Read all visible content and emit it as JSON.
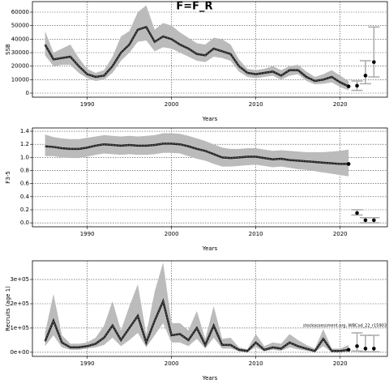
{
  "chart_data": [
    {
      "type": "line",
      "title": "F=F_R",
      "xlabel": "Years",
      "ylabel": "SSB",
      "color": "#222222",
      "band_color": "#bbbbbb",
      "grid": true,
      "xlim": [
        1983.5,
        2025.6
      ],
      "xticks": [
        1990,
        2000,
        2010,
        2020
      ],
      "ylim": [
        -3000,
        67800
      ],
      "yticks": [
        0,
        10000,
        20000,
        30000,
        40000,
        50000,
        60000
      ],
      "x": [
        1985,
        1986,
        1987,
        1988,
        1989,
        1990,
        1991,
        1992,
        1993,
        1994,
        1995,
        1996,
        1997,
        1998,
        1999,
        2000,
        2001,
        2002,
        2003,
        2004,
        2005,
        2006,
        2007,
        2008,
        2009,
        2010,
        2011,
        2012,
        2013,
        2014,
        2015,
        2016,
        2017,
        2018,
        2019,
        2020,
        2021
      ],
      "values": [
        36000,
        25000,
        26000,
        27000,
        20000,
        14000,
        12000,
        13000,
        20000,
        30000,
        36000,
        47000,
        49000,
        38000,
        42000,
        40000,
        36000,
        33000,
        29000,
        28000,
        33000,
        31000,
        29000,
        20000,
        15000,
        14000,
        15000,
        16000,
        13000,
        17000,
        17000,
        12000,
        9000,
        10000,
        12000,
        8000,
        5000
      ],
      "upper": [
        46000,
        30000,
        33000,
        36000,
        26000,
        18000,
        15000,
        17000,
        27000,
        42000,
        46000,
        60000,
        65000,
        47000,
        52000,
        50000,
        45000,
        41000,
        37000,
        36000,
        41000,
        40000,
        36000,
        25000,
        18000,
        17000,
        18000,
        20000,
        17000,
        20000,
        21000,
        16000,
        12000,
        14000,
        17000,
        13000,
        9000
      ],
      "lower": [
        28000,
        20000,
        21000,
        21000,
        15000,
        11000,
        9000,
        10000,
        15000,
        24000,
        30000,
        38000,
        39000,
        31000,
        34000,
        33000,
        30000,
        27000,
        24000,
        23000,
        27000,
        26000,
        24000,
        16000,
        12000,
        11000,
        12000,
        13000,
        10000,
        13000,
        14000,
        9000,
        6500,
        7000,
        8000,
        4500,
        2000
      ],
      "projection": {
        "x": [
          2022,
          2023,
          2024
        ],
        "values": [
          5500,
          13000,
          23000
        ],
        "lower": [
          2000,
          7000,
          12000
        ],
        "upper": [
          9000,
          24000,
          49000
        ]
      }
    },
    {
      "type": "line",
      "xlabel": "Years",
      "ylabel": "F3-5",
      "color": "#222222",
      "band_color": "#bbbbbb",
      "grid": true,
      "xlim": [
        1983.5,
        2025.6
      ],
      "xticks": [
        1990,
        2000,
        2010,
        2020
      ],
      "ylim": [
        -0.06,
        1.45
      ],
      "yticks": [
        {
          "value": 0,
          "label": "0.0"
        },
        0.2,
        0.4,
        0.6,
        0.8,
        {
          "value": 1,
          "label": "1.0"
        },
        1.2,
        1.4
      ],
      "x": [
        1985,
        1986,
        1987,
        1988,
        1989,
        1990,
        1991,
        1992,
        1993,
        1994,
        1995,
        1996,
        1997,
        1998,
        1999,
        2000,
        2001,
        2002,
        2003,
        2004,
        2005,
        2006,
        2007,
        2008,
        2009,
        2010,
        2011,
        2012,
        2013,
        2014,
        2015,
        2016,
        2017,
        2018,
        2019,
        2020,
        2021
      ],
      "values": [
        1.17,
        1.16,
        1.14,
        1.13,
        1.13,
        1.15,
        1.18,
        1.2,
        1.19,
        1.18,
        1.19,
        1.18,
        1.18,
        1.19,
        1.21,
        1.21,
        1.2,
        1.17,
        1.13,
        1.1,
        1.05,
        1.0,
        0.99,
        1.0,
        1.01,
        1.01,
        0.99,
        0.97,
        0.98,
        0.96,
        0.95,
        0.94,
        0.93,
        0.92,
        0.91,
        0.9,
        0.9
      ],
      "upper": [
        1.35,
        1.31,
        1.29,
        1.28,
        1.28,
        1.3,
        1.32,
        1.34,
        1.33,
        1.32,
        1.33,
        1.32,
        1.33,
        1.34,
        1.37,
        1.37,
        1.36,
        1.33,
        1.29,
        1.25,
        1.2,
        1.15,
        1.13,
        1.13,
        1.14,
        1.14,
        1.12,
        1.1,
        1.11,
        1.1,
        1.09,
        1.08,
        1.08,
        1.08,
        1.09,
        1.1,
        1.12
      ],
      "lower": [
        1.02,
        1.02,
        1.0,
        0.99,
        0.99,
        1.01,
        1.04,
        1.06,
        1.05,
        1.04,
        1.05,
        1.04,
        1.04,
        1.05,
        1.07,
        1.07,
        1.06,
        1.02,
        0.98,
        0.95,
        0.9,
        0.86,
        0.86,
        0.87,
        0.88,
        0.89,
        0.87,
        0.85,
        0.86,
        0.84,
        0.82,
        0.81,
        0.79,
        0.77,
        0.75,
        0.73,
        0.71
      ],
      "projection": {
        "x": [
          2022,
          2023,
          2024
        ],
        "values": [
          0.15,
          0.04,
          0.04
        ],
        "lower": [
          0.12,
          0.0,
          0.0
        ],
        "upper": [
          0.2,
          0.08,
          0.08
        ]
      }
    },
    {
      "type": "line",
      "xlabel": "Years",
      "ylabel": "Recruits (age 1)",
      "color": "#222222",
      "band_color": "#bbbbbb",
      "grid": true,
      "annotation": "stockassessment.org, WBCod_22_r15903",
      "xlim": [
        1983.5,
        2025.6
      ],
      "xticks": [
        1990,
        2000,
        2010,
        2020
      ],
      "ylim": [
        -17000,
        377000
      ],
      "yticks": [
        {
          "value": 0,
          "label": "0e+00"
        },
        {
          "value": 100000,
          "label": "1e+05"
        },
        {
          "value": 200000,
          "label": "2e+05"
        },
        {
          "value": 300000,
          "label": "3e+05"
        }
      ],
      "x": [
        1985,
        1986,
        1987,
        1988,
        1989,
        1990,
        1991,
        1992,
        1993,
        1994,
        1995,
        1996,
        1997,
        1998,
        1999,
        2000,
        2001,
        2002,
        2003,
        2004,
        2005,
        2006,
        2007,
        2008,
        2009,
        2010,
        2011,
        2012,
        2013,
        2014,
        2015,
        2016,
        2017,
        2018,
        2019,
        2020,
        2021
      ],
      "values": [
        45000,
        130000,
        40000,
        20000,
        20000,
        25000,
        35000,
        60000,
        110000,
        50000,
        100000,
        150000,
        40000,
        130000,
        210000,
        70000,
        75000,
        50000,
        100000,
        30000,
        110000,
        30000,
        30000,
        10000,
        5000,
        40000,
        10000,
        20000,
        15000,
        40000,
        25000,
        15000,
        5000,
        55000,
        5000,
        5000,
        10000
      ],
      "upper": [
        80000,
        240000,
        70000,
        35000,
        35000,
        40000,
        60000,
        110000,
        210000,
        90000,
        190000,
        280000,
        75000,
        250000,
        370000,
        120000,
        120000,
        90000,
        170000,
        55000,
        190000,
        55000,
        60000,
        20000,
        12000,
        75000,
        25000,
        40000,
        35000,
        75000,
        50000,
        30000,
        15000,
        95000,
        15000,
        15000,
        30000
      ],
      "lower": [
        25000,
        70000,
        20000,
        10000,
        10000,
        15000,
        20000,
        30000,
        60000,
        25000,
        50000,
        80000,
        20000,
        70000,
        120000,
        40000,
        40000,
        25000,
        55000,
        15000,
        60000,
        15000,
        15000,
        4000,
        1000,
        20000,
        4000,
        10000,
        6000,
        20000,
        12000,
        6000,
        1000,
        25000,
        1000,
        1000,
        2000
      ],
      "projection": {
        "x": [
          2022,
          2023,
          2024
        ],
        "values": [
          25000,
          15000,
          15000
        ],
        "lower": [
          5000,
          2000,
          2000
        ],
        "upper": [
          80000,
          70000,
          70000
        ]
      }
    }
  ]
}
